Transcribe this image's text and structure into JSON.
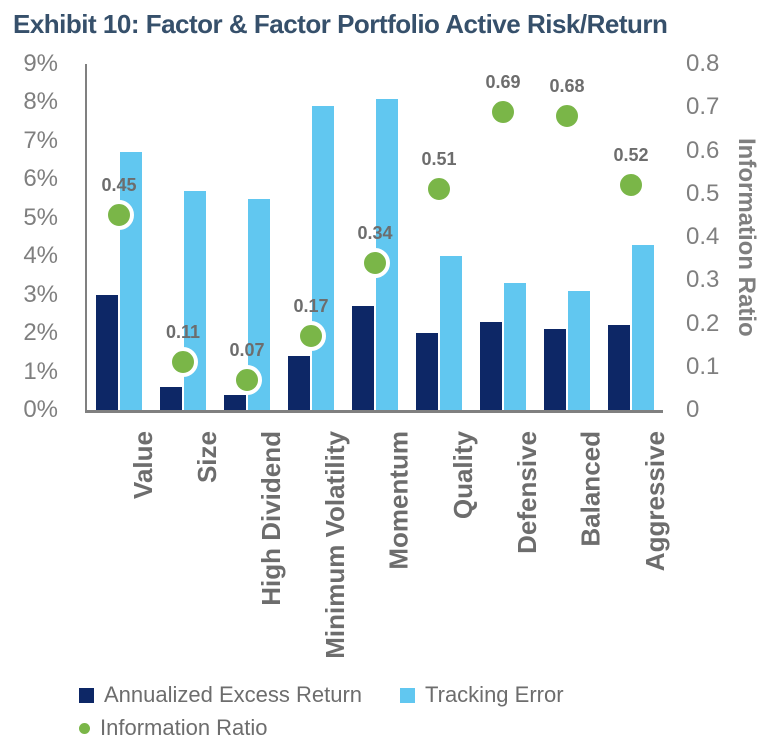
{
  "title": "Exhibit 10: Factor & Factor Portfolio Active Risk/Return",
  "colors": {
    "title_text": "#36506b",
    "axis_text": "#7f7f7f",
    "data_label_text": "#6d6d6d",
    "category_text": "#6d6d6d",
    "legend_text": "#6d6d6d",
    "axis_line": "#808080",
    "background": "#ffffff",
    "excess_return_bar": "#0d2766",
    "tracking_error_bar": "#61c7f0",
    "information_ratio_dot": "#7ab648"
  },
  "chart_data": {
    "type": "bar",
    "subtype": "grouped-bars-with-scatter-overlay",
    "title": "Exhibit 10: Factor & Factor Portfolio Active Risk/Return",
    "grid": "off",
    "legend_position": "bottom-left",
    "categories": [
      "Value",
      "Size",
      "High Dividend",
      "Minimum Volatility",
      "Momentum",
      "Quality",
      "Defensive",
      "Balanced",
      "Aggressive"
    ],
    "series": [
      {
        "name": "Annualized Excess Return",
        "type": "bar",
        "axis": "left",
        "unit": "%",
        "color": "#0d2766",
        "values": [
          3.0,
          0.6,
          0.4,
          1.4,
          2.7,
          2.0,
          2.3,
          2.1,
          2.2
        ]
      },
      {
        "name": "Tracking Error",
        "type": "bar",
        "axis": "left",
        "unit": "%",
        "color": "#61c7f0",
        "values": [
          6.7,
          5.7,
          5.5,
          7.9,
          8.1,
          4.0,
          3.3,
          3.1,
          4.3
        ]
      },
      {
        "name": "Information Ratio",
        "type": "scatter",
        "axis": "right",
        "color": "#7ab648",
        "values": [
          0.45,
          0.11,
          0.07,
          0.17,
          0.34,
          0.51,
          0.69,
          0.68,
          0.52
        ],
        "point_labels": [
          "0.45",
          "0.11",
          "0.07",
          "0.17",
          "0.34",
          "0.51",
          "0.69",
          "0.68",
          "0.52"
        ]
      }
    ],
    "left_axis": {
      "min": 0,
      "max": 9,
      "ticks": [
        "9%",
        "8%",
        "7%",
        "6%",
        "5%",
        "4%",
        "3%",
        "2%",
        "1%",
        "0%"
      ]
    },
    "right_axis": {
      "min": 0,
      "max": 0.8,
      "title": "Information Ratio",
      "ticks": [
        "0.8",
        "0.7",
        "0.6",
        "0.5",
        "0.4",
        "0.3",
        "0.2",
        "0.1",
        "0"
      ]
    },
    "legend": [
      {
        "label": "Annualized Excess Return",
        "marker": "square",
        "color": "#0d2766"
      },
      {
        "label": "Tracking Error",
        "marker": "square",
        "color": "#61c7f0"
      },
      {
        "label": "Information Ratio",
        "marker": "circle",
        "color": "#7ab648"
      }
    ]
  }
}
